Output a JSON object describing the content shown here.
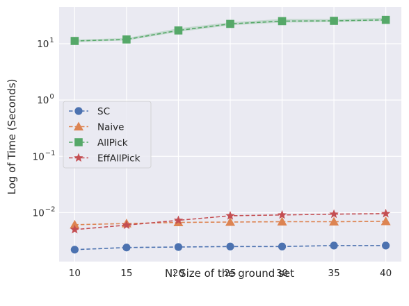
{
  "chart_data": {
    "type": "line",
    "title": "",
    "xlabel": "N: Size of the ground set",
    "ylabel": "Log of Time (Seconds)",
    "x": [
      10,
      15,
      20,
      25,
      30,
      35,
      40
    ],
    "xlim": [
      8.5,
      41.5
    ],
    "x_ticks": [
      10,
      15,
      20,
      25,
      30,
      35,
      40
    ],
    "x_tick_labels": [
      "10",
      "15",
      "20",
      "25",
      "30",
      "35",
      "40"
    ],
    "yscale": "log",
    "ylim": [
      0.00135,
      45
    ],
    "y_ticks": [
      0.01,
      0.1,
      1,
      10
    ],
    "y_tick_labels": [
      {
        "base": "10",
        "exp": "−2"
      },
      {
        "base": "10",
        "exp": "−1"
      },
      {
        "base": "10",
        "exp": "0"
      },
      {
        "base": "10",
        "exp": "1"
      }
    ],
    "grid": true,
    "legend_position": "center-left",
    "series": [
      {
        "name": "SC",
        "marker": "circle",
        "color": "#4c72b0",
        "values": [
          0.0022,
          0.0024,
          0.00245,
          0.0025,
          0.0025,
          0.0026,
          0.0026
        ]
      },
      {
        "name": "Naive",
        "marker": "triangle",
        "color": "#dd8452",
        "values": [
          0.0061,
          0.0064,
          0.0067,
          0.0068,
          0.0069,
          0.0069,
          0.007
        ]
      },
      {
        "name": "AllPick",
        "marker": "square",
        "color": "#55a868",
        "values": [
          11.2,
          11.9,
          17.2,
          22.5,
          25.2,
          25.5,
          26.5
        ],
        "band_low": [
          10.7,
          11.4,
          16.2,
          21.2,
          23.8,
          24.2,
          25.3
        ],
        "band_high": [
          11.8,
          12.6,
          18.8,
          24.0,
          27.5,
          27.5,
          28.8
        ]
      },
      {
        "name": "EffAllPick",
        "marker": "star",
        "color": "#c44e52",
        "values": [
          0.005,
          0.006,
          0.0073,
          0.0088,
          0.0091,
          0.0094,
          0.0096
        ]
      }
    ]
  }
}
